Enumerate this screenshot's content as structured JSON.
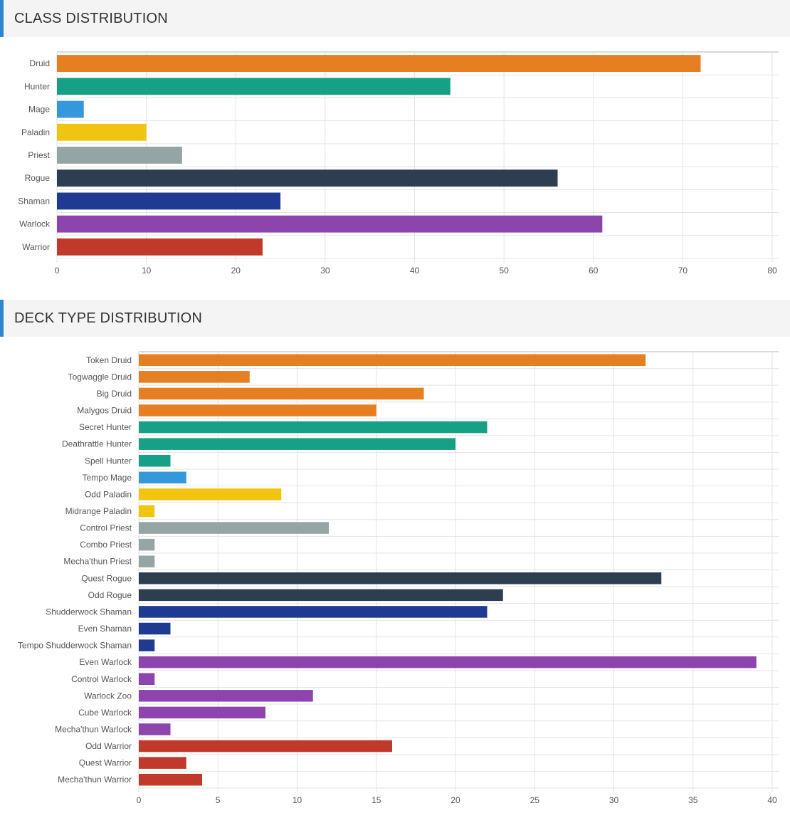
{
  "sections": {
    "class_title": "CLASS DISTRIBUTION",
    "deck_title": "DECK TYPE DISTRIBUTION"
  },
  "class_colors": {
    "Druid": "#e67e22",
    "Hunter": "#16a085",
    "Mage": "#3498db",
    "Paladin": "#f1c40f",
    "Priest": "#95a5a6",
    "Rogue": "#2c3e50",
    "Shaman": "#1f3a93",
    "Warlock": "#8e44ad",
    "Warrior": "#c0392b"
  },
  "chart_data": [
    {
      "type": "bar",
      "orientation": "horizontal",
      "title": "CLASS DISTRIBUTION",
      "categories": [
        "Druid",
        "Hunter",
        "Mage",
        "Paladin",
        "Priest",
        "Rogue",
        "Shaman",
        "Warlock",
        "Warrior"
      ],
      "values": [
        72,
        44,
        3,
        10,
        14,
        56,
        25,
        61,
        23
      ],
      "classes": [
        "Druid",
        "Hunter",
        "Mage",
        "Paladin",
        "Priest",
        "Rogue",
        "Shaman",
        "Warlock",
        "Warrior"
      ],
      "xlim": [
        0,
        80
      ],
      "xticks": [
        0,
        10,
        20,
        30,
        40,
        50,
        60,
        70,
        80
      ],
      "grid": true
    },
    {
      "type": "bar",
      "orientation": "horizontal",
      "title": "DECK TYPE DISTRIBUTION",
      "categories": [
        "Token Druid",
        "Togwaggle Druid",
        "Big Druid",
        "Malygos Druid",
        "Secret Hunter",
        "Deathrattle Hunter",
        "Spell Hunter",
        "Tempo Mage",
        "Odd Paladin",
        "Midrange Paladin",
        "Control Priest",
        "Combo Priest",
        "Mecha'thun Priest",
        "Quest Rogue",
        "Odd Rogue",
        "Shudderwock Shaman",
        "Even Shaman",
        "Tempo Shudderwock Shaman",
        "Even Warlock",
        "Control Warlock",
        "Warlock Zoo",
        "Cube Warlock",
        "Mecha'thun Warlock",
        "Odd Warrior",
        "Quest Warrior",
        "Mecha'thun Warrior"
      ],
      "values": [
        32,
        7,
        18,
        15,
        22,
        20,
        2,
        3,
        9,
        1,
        12,
        1,
        1,
        33,
        23,
        22,
        2,
        1,
        39,
        1,
        11,
        8,
        2,
        16,
        3,
        4
      ],
      "classes": [
        "Druid",
        "Druid",
        "Druid",
        "Druid",
        "Hunter",
        "Hunter",
        "Hunter",
        "Mage",
        "Paladin",
        "Paladin",
        "Priest",
        "Priest",
        "Priest",
        "Rogue",
        "Rogue",
        "Shaman",
        "Shaman",
        "Shaman",
        "Warlock",
        "Warlock",
        "Warlock",
        "Warlock",
        "Warlock",
        "Warrior",
        "Warrior",
        "Warrior"
      ],
      "xlim": [
        0,
        40
      ],
      "xticks": [
        0,
        5,
        10,
        15,
        20,
        25,
        30,
        35,
        40
      ],
      "grid": true
    }
  ]
}
